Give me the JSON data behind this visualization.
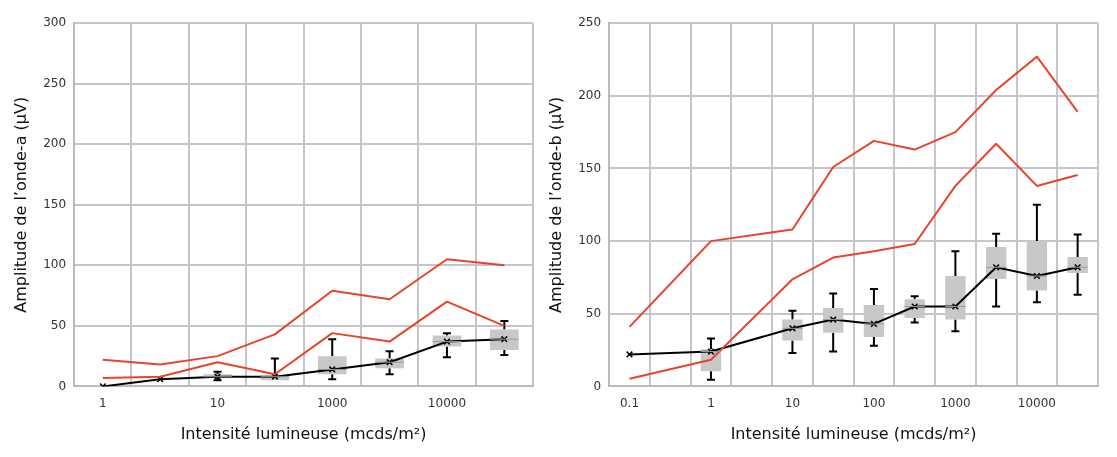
{
  "chart_data": [
    {
      "type": "box",
      "xlabel": "Intensité lumineuse (mcds/m²)",
      "ylabel": "Amplitude de l’onde-a (µV)",
      "categories": [
        "1",
        null,
        "10",
        null,
        "1000",
        null,
        "10000",
        null
      ],
      "ylim": [
        0,
        300
      ],
      "yticks": [
        0,
        50,
        100,
        150,
        200,
        250,
        300
      ],
      "grid": true,
      "series": [
        {
          "type": "box",
          "color": "#c8c8c8",
          "boxes": [
            null,
            null,
            {
              "low": 5,
              "q1": 7,
              "median": 8,
              "q3": 10,
              "high": 12
            },
            {
              "low": 5,
              "q1": 5,
              "median": 8,
              "q3": 9,
              "high": 23
            },
            {
              "low": 6,
              "q1": 10,
              "median": 14,
              "q3": 25,
              "high": 39
            },
            {
              "low": 10,
              "q1": 15,
              "median": 20,
              "q3": 23,
              "high": 29
            },
            {
              "low": 24,
              "q1": 33,
              "median": 37,
              "q3": 42,
              "high": 44
            },
            {
              "low": 26,
              "q1": 30,
              "median": 39,
              "q3": 47,
              "high": 54
            }
          ]
        },
        {
          "type": "line",
          "color": "#e8442c",
          "values": [
            22,
            18,
            25,
            43,
            79,
            72,
            105,
            100
          ]
        },
        {
          "type": "line",
          "color": "#e8442c",
          "values": [
            7,
            8,
            20,
            10,
            44,
            37,
            70,
            50
          ]
        },
        {
          "type": "line",
          "color": "#000000",
          "marker": "cross",
          "values": [
            0,
            6,
            8,
            8,
            14,
            20,
            37,
            39
          ]
        }
      ]
    },
    {
      "type": "box",
      "xlabel": "Intensité lumineuse (mcds/m²)",
      "ylabel": "Amplitude de l’onde-b (µV)",
      "categories": [
        "0.1",
        null,
        "1",
        null,
        "10",
        null,
        "100",
        null,
        "1000",
        null,
        "10000",
        null
      ],
      "ylim": [
        0,
        250
      ],
      "yticks": [
        0,
        50,
        100,
        150,
        200,
        250
      ],
      "grid": true,
      "series": [
        {
          "type": "box",
          "color": "#c8c8c8",
          "boxes": [
            null,
            null,
            {
              "low": 4.5,
              "q1": 10.5,
              "median": 24,
              "q3": 25.5,
              "high": 33
            },
            null,
            {
              "low": 23,
              "q1": 31.6,
              "median": 40,
              "q3": 46,
              "high": 52
            },
            {
              "low": 24,
              "q1": 37,
              "median": 46,
              "q3": 54,
              "high": 64
            },
            {
              "low": 28,
              "q1": 34,
              "median": 43,
              "q3": 56,
              "high": 67
            },
            {
              "low": 44,
              "q1": 47,
              "median": 55,
              "q3": 60,
              "high": 62
            },
            {
              "low": 38,
              "q1": 46,
              "median": 55,
              "q3": 76,
              "high": 93
            },
            {
              "low": 55,
              "q1": 74,
              "median": 82,
              "q3": 96,
              "high": 105
            },
            {
              "low": 58,
              "q1": 66,
              "median": 76,
              "q3": 100,
              "high": 125
            },
            {
              "low": 63,
              "q1": 78,
              "median": 82,
              "q3": 89,
              "high": 104.5
            }
          ]
        },
        {
          "type": "line",
          "color": "#e8442c",
          "values": [
            41,
            null,
            100,
            null,
            108,
            151,
            169,
            163,
            175,
            204,
            227,
            189
          ]
        },
        {
          "type": "line",
          "color": "#e8442c",
          "values": [
            5.3,
            null,
            18.4,
            null,
            73.7,
            88.7,
            93,
            98,
            138,
            167,
            138,
            145.5
          ]
        },
        {
          "type": "line",
          "color": "#000000",
          "marker": "cross",
          "values": [
            22,
            null,
            24,
            null,
            40,
            46,
            43,
            55,
            55,
            82,
            76,
            82
          ]
        }
      ]
    }
  ]
}
